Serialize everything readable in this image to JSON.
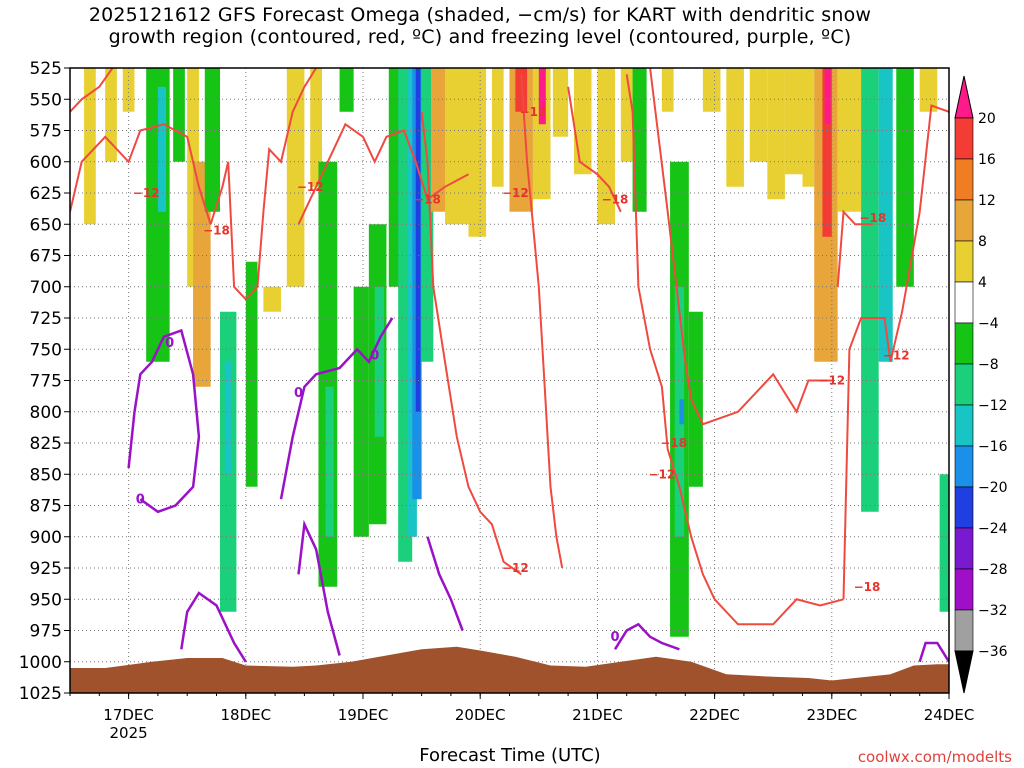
{
  "title_line1": "2025121612 GFS Forecast Omega (shaded, −cm/s) for KART with dendritic snow",
  "title_line2": "growth region (contoured, red, ºC) and freezing level (contoured, purple, ºC)",
  "source": "coolwx.com/modelts",
  "chart_data": {
    "type": "heatmap",
    "title": "2025121612 GFS Forecast Omega (shaded, −cm/s) for KART with dendritic snow growth region (contoured, red, ºC) and freezing level (contoured, purple, ºC)",
    "xlabel": "Forecast Time (UTC)",
    "ylabel": "",
    "x_ticks": [
      "17DEC",
      "18DEC",
      "19DEC",
      "20DEC",
      "21DEC",
      "22DEC",
      "23DEC",
      "24DEC"
    ],
    "x_year_label": "2025",
    "x_range_days": [
      16.5,
      24.0
    ],
    "y_ticks": [
      525,
      550,
      575,
      600,
      625,
      650,
      675,
      700,
      725,
      750,
      775,
      800,
      825,
      850,
      875,
      900,
      925,
      950,
      975,
      1000,
      1025
    ],
    "y_range": [
      525,
      1025
    ],
    "grid": true,
    "colorbar": {
      "labels": [
        "20",
        "16",
        "12",
        "8",
        "4",
        "−4",
        "−8",
        "−12",
        "−16",
        "−20",
        "−24",
        "−28",
        "−32",
        "−36"
      ],
      "colors": [
        "#ff1a8c",
        "#f23c34",
        "#f07d23",
        "#e8a53a",
        "#e8d032",
        "#ffffff",
        "#16c416",
        "#1ad07a",
        "#19c4c4",
        "#1a90e8",
        "#1f3fe0",
        "#7a1ad0",
        "#a00fc8",
        "#a0a0a0"
      ]
    },
    "red_contour_labels": [
      "−12",
      "−18",
      "−12",
      "−18",
      "−12",
      "−12",
      "−18",
      "−12",
      "−18",
      "−12",
      "−18",
      "−12",
      "−18",
      "−12"
    ],
    "purple_contour_labels": [
      "0",
      "0",
      "0",
      "0",
      "0"
    ],
    "omega_regions": [
      {
        "t0": 16.62,
        "t1": 16.72,
        "p0": 525,
        "p1": 650,
        "color": "#e8d032"
      },
      {
        "t0": 16.8,
        "t1": 16.9,
        "p0": 525,
        "p1": 600,
        "color": "#e8d032"
      },
      {
        "t0": 16.95,
        "t1": 17.05,
        "p0": 525,
        "p1": 560,
        "color": "#e8d032"
      },
      {
        "t0": 17.15,
        "t1": 17.35,
        "p0": 525,
        "p1": 760,
        "color": "#16c416"
      },
      {
        "t0": 17.25,
        "t1": 17.32,
        "p0": 540,
        "p1": 640,
        "color": "#19c4c4"
      },
      {
        "t0": 17.38,
        "t1": 17.48,
        "p0": 525,
        "p1": 600,
        "color": "#16c416"
      },
      {
        "t0": 17.5,
        "t1": 17.6,
        "p0": 525,
        "p1": 700,
        "color": "#e8d032"
      },
      {
        "t0": 17.55,
        "t1": 17.7,
        "p0": 600,
        "p1": 780,
        "color": "#e8a53a"
      },
      {
        "t0": 17.65,
        "t1": 17.78,
        "p0": 525,
        "p1": 640,
        "color": "#16c416"
      },
      {
        "t0": 17.78,
        "t1": 17.92,
        "p0": 720,
        "p1": 960,
        "color": "#1ad07a"
      },
      {
        "t0": 17.82,
        "t1": 17.88,
        "p0": 760,
        "p1": 850,
        "color": "#19c4c4"
      },
      {
        "t0": 18.0,
        "t1": 18.1,
        "p0": 680,
        "p1": 860,
        "color": "#16c416"
      },
      {
        "t0": 18.15,
        "t1": 18.3,
        "p0": 700,
        "p1": 720,
        "color": "#e8d032"
      },
      {
        "t0": 18.35,
        "t1": 18.5,
        "p0": 525,
        "p1": 700,
        "color": "#e8d032"
      },
      {
        "t0": 18.55,
        "t1": 18.65,
        "p0": 525,
        "p1": 620,
        "color": "#e8d032"
      },
      {
        "t0": 18.62,
        "t1": 18.78,
        "p0": 600,
        "p1": 940,
        "color": "#16c416"
      },
      {
        "t0": 18.68,
        "t1": 18.75,
        "p0": 780,
        "p1": 900,
        "color": "#1ad07a"
      },
      {
        "t0": 18.8,
        "t1": 18.92,
        "p0": 525,
        "p1": 560,
        "color": "#16c416"
      },
      {
        "t0": 18.92,
        "t1": 19.05,
        "p0": 700,
        "p1": 900,
        "color": "#16c416"
      },
      {
        "t0": 19.05,
        "t1": 19.2,
        "p0": 650,
        "p1": 890,
        "color": "#16c416"
      },
      {
        "t0": 19.1,
        "t1": 19.18,
        "p0": 700,
        "p1": 820,
        "color": "#1ad07a"
      },
      {
        "t0": 19.22,
        "t1": 19.32,
        "p0": 525,
        "p1": 700,
        "color": "#16c416"
      },
      {
        "t0": 19.3,
        "t1": 19.42,
        "p0": 525,
        "p1": 920,
        "color": "#1ad07a"
      },
      {
        "t0": 19.38,
        "t1": 19.46,
        "p0": 525,
        "p1": 900,
        "color": "#19c4c4"
      },
      {
        "t0": 19.42,
        "t1": 19.5,
        "p0": 525,
        "p1": 870,
        "color": "#1a90e8"
      },
      {
        "t0": 19.45,
        "t1": 19.49,
        "p0": 525,
        "p1": 800,
        "color": "#1f3fe0"
      },
      {
        "t0": 19.5,
        "t1": 19.6,
        "p0": 525,
        "p1": 760,
        "color": "#1ad07a"
      },
      {
        "t0": 19.58,
        "t1": 19.72,
        "p0": 525,
        "p1": 640,
        "color": "#e8a53a"
      },
      {
        "t0": 19.7,
        "t1": 19.9,
        "p0": 525,
        "p1": 650,
        "color": "#e8d032"
      },
      {
        "t0": 19.9,
        "t1": 20.05,
        "p0": 525,
        "p1": 660,
        "color": "#e8d032"
      },
      {
        "t0": 20.1,
        "t1": 20.2,
        "p0": 525,
        "p1": 620,
        "color": "#e8d032"
      },
      {
        "t0": 20.25,
        "t1": 20.45,
        "p0": 525,
        "p1": 640,
        "color": "#e8a53a"
      },
      {
        "t0": 20.3,
        "t1": 20.4,
        "p0": 525,
        "p1": 560,
        "color": "#f23c34"
      },
      {
        "t0": 20.45,
        "t1": 20.6,
        "p0": 525,
        "p1": 630,
        "color": "#e8d032"
      },
      {
        "t0": 20.5,
        "t1": 20.56,
        "p0": 525,
        "p1": 570,
        "color": "#ff1a8c"
      },
      {
        "t0": 20.62,
        "t1": 20.75,
        "p0": 525,
        "p1": 580,
        "color": "#e8d032"
      },
      {
        "t0": 20.8,
        "t1": 20.95,
        "p0": 525,
        "p1": 610,
        "color": "#e8d032"
      },
      {
        "t0": 21.0,
        "t1": 21.15,
        "p0": 525,
        "p1": 650,
        "color": "#e8d032"
      },
      {
        "t0": 21.2,
        "t1": 21.3,
        "p0": 525,
        "p1": 600,
        "color": "#e8d032"
      },
      {
        "t0": 21.3,
        "t1": 21.42,
        "p0": 525,
        "p1": 640,
        "color": "#16c416"
      },
      {
        "t0": 21.55,
        "t1": 21.65,
        "p0": 525,
        "p1": 560,
        "color": "#e8d032"
      },
      {
        "t0": 21.62,
        "t1": 21.78,
        "p0": 600,
        "p1": 980,
        "color": "#16c416"
      },
      {
        "t0": 21.66,
        "t1": 21.74,
        "p0": 700,
        "p1": 900,
        "color": "#1ad07a"
      },
      {
        "t0": 21.7,
        "t1": 21.74,
        "p0": 790,
        "p1": 810,
        "color": "#1a90e8"
      },
      {
        "t0": 21.78,
        "t1": 21.9,
        "p0": 720,
        "p1": 860,
        "color": "#16c416"
      },
      {
        "t0": 21.9,
        "t1": 22.05,
        "p0": 525,
        "p1": 560,
        "color": "#e8d032"
      },
      {
        "t0": 22.1,
        "t1": 22.25,
        "p0": 525,
        "p1": 620,
        "color": "#e8d032"
      },
      {
        "t0": 22.3,
        "t1": 22.45,
        "p0": 525,
        "p1": 600,
        "color": "#e8d032"
      },
      {
        "t0": 22.45,
        "t1": 22.6,
        "p0": 525,
        "p1": 630,
        "color": "#e8d032"
      },
      {
        "t0": 22.6,
        "t1": 22.75,
        "p0": 525,
        "p1": 610,
        "color": "#e8d032"
      },
      {
        "t0": 22.75,
        "t1": 22.85,
        "p0": 525,
        "p1": 620,
        "color": "#e8d032"
      },
      {
        "t0": 22.85,
        "t1": 23.05,
        "p0": 525,
        "p1": 760,
        "color": "#e8a53a"
      },
      {
        "t0": 22.92,
        "t1": 23.0,
        "p0": 525,
        "p1": 660,
        "color": "#f23c34"
      },
      {
        "t0": 22.94,
        "t1": 22.99,
        "p0": 525,
        "p1": 570,
        "color": "#ff1a8c"
      },
      {
        "t0": 23.05,
        "t1": 23.25,
        "p0": 525,
        "p1": 640,
        "color": "#e8d032"
      },
      {
        "t0": 23.25,
        "t1": 23.4,
        "p0": 525,
        "p1": 880,
        "color": "#1ad07a"
      },
      {
        "t0": 23.4,
        "t1": 23.52,
        "p0": 525,
        "p1": 760,
        "color": "#19c4c4"
      },
      {
        "t0": 23.55,
        "t1": 23.7,
        "p0": 525,
        "p1": 700,
        "color": "#16c416"
      },
      {
        "t0": 23.75,
        "t1": 23.9,
        "p0": 525,
        "p1": 560,
        "color": "#e8d032"
      },
      {
        "t0": 23.92,
        "t1": 24.0,
        "p0": 850,
        "p1": 960,
        "color": "#1ad07a"
      }
    ]
  }
}
